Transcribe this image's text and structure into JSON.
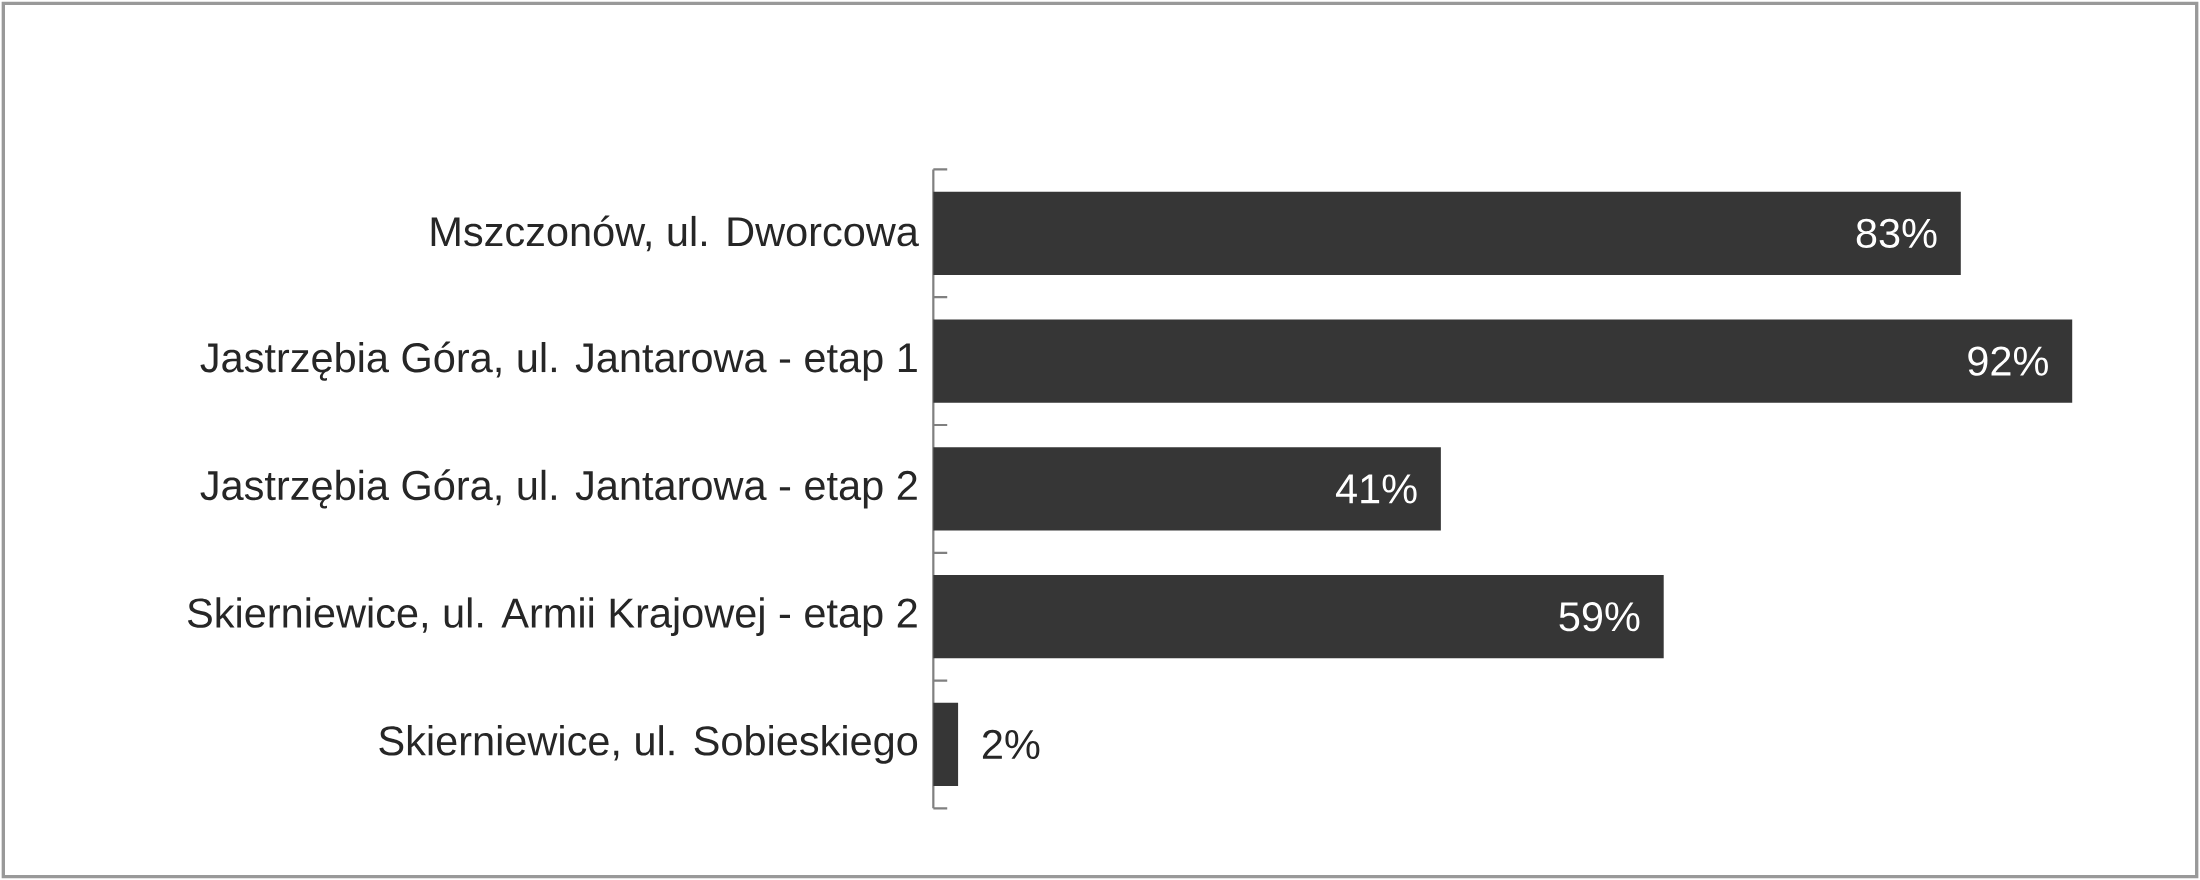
{
  "chart_data": {
    "type": "bar",
    "orientation": "horizontal",
    "categories": [
      "Mszczonów, ul. Dworcowa",
      "Jastrzębia Góra, ul. Jantarowa - etap 1",
      "Jastrzębia Góra, ul. Jantarowa - etap 2",
      "Skierniewice, ul. Armii Krajowej - etap 2",
      "Skierniewice, ul. Sobieskiego"
    ],
    "values": [
      83,
      92,
      41,
      59,
      2
    ],
    "value_labels": [
      "83%",
      "92%",
      "41%",
      "59%",
      "2%"
    ],
    "color": "#363636",
    "tick_labels": "y"
  }
}
